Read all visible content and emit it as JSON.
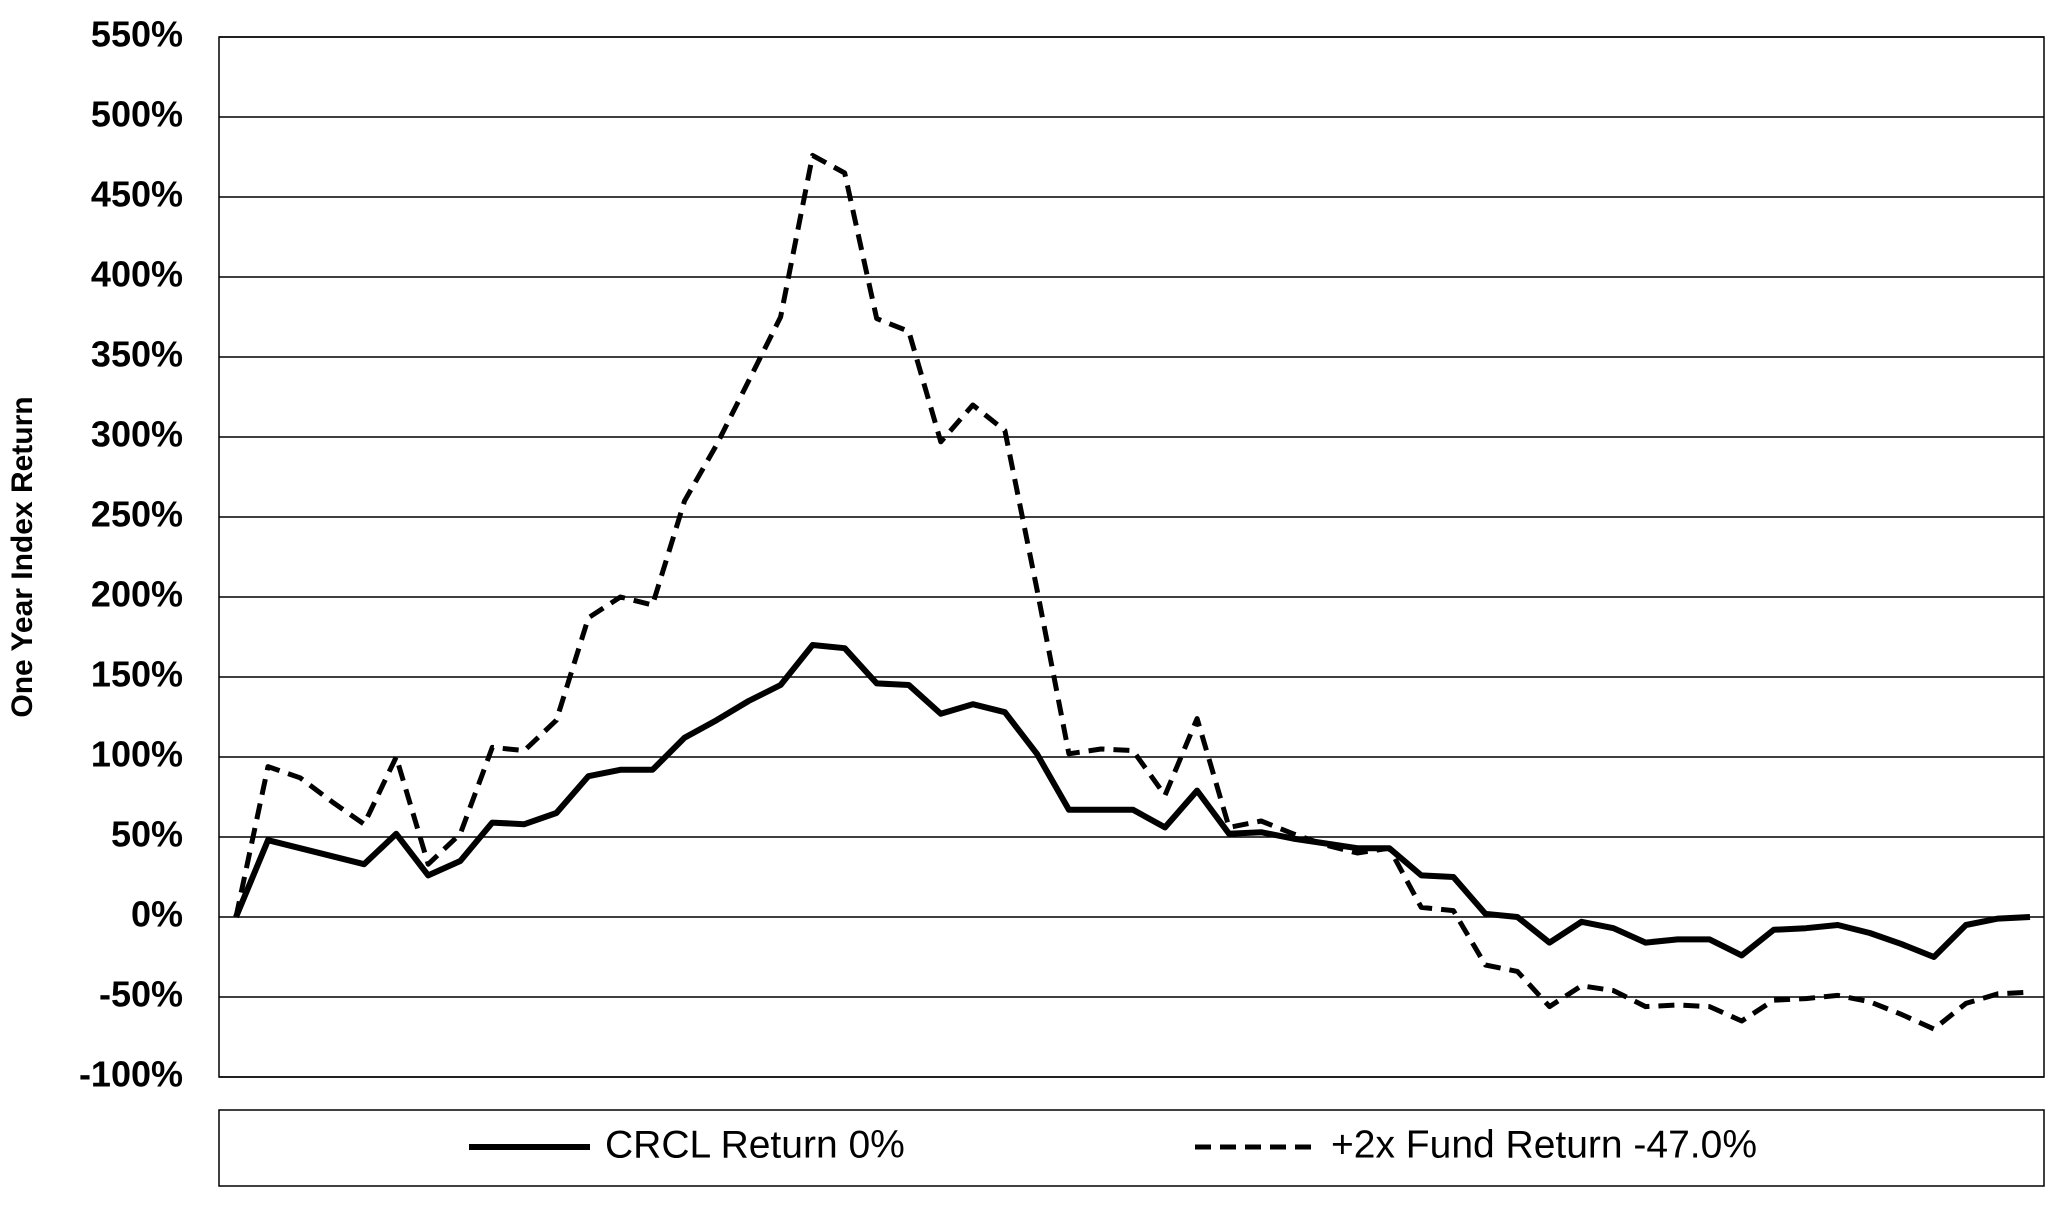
{
  "chart_data": {
    "type": "line",
    "ylabel": "One Year Index Return",
    "ylim": [
      -100,
      550
    ],
    "yticks": [
      {
        "value": -100,
        "label": "-100%"
      },
      {
        "value": -50,
        "label": "-50%"
      },
      {
        "value": 0,
        "label": "0%"
      },
      {
        "value": 50,
        "label": "50%"
      },
      {
        "value": 100,
        "label": "100%"
      },
      {
        "value": 150,
        "label": "150%"
      },
      {
        "value": 200,
        "label": "200%"
      },
      {
        "value": 250,
        "label": "250%"
      },
      {
        "value": 300,
        "label": "300%"
      },
      {
        "value": 350,
        "label": "350%"
      },
      {
        "value": 400,
        "label": "400%"
      },
      {
        "value": 450,
        "label": "450%"
      },
      {
        "value": 500,
        "label": "500%"
      },
      {
        "value": 550,
        "label": "550%"
      }
    ],
    "grid": true,
    "legend": "bottom",
    "series": [
      {
        "name": "CRCL Return 0%",
        "color": "#000000",
        "dashed": false,
        "values": [
          0,
          48,
          43,
          38,
          33,
          52,
          26,
          35,
          59,
          58,
          65,
          88,
          92,
          92,
          112,
          123,
          135,
          145,
          170,
          168,
          146,
          145,
          127,
          133,
          128,
          102,
          67,
          67,
          67,
          56,
          79,
          52,
          53,
          49,
          46,
          43,
          43,
          26,
          25,
          2,
          0,
          -16,
          -3,
          -7,
          -16,
          -14,
          -14,
          -24,
          -8,
          -7,
          -5,
          -10,
          -17,
          -25,
          -5,
          -1,
          0
        ]
      },
      {
        "name": "+2x Fund Return -47.0%",
        "color": "#000000",
        "dashed": true,
        "values": [
          0,
          94,
          87,
          72,
          58,
          100,
          33,
          52,
          106,
          104,
          123,
          187,
          200,
          195,
          260,
          295,
          335,
          375,
          476,
          465,
          374,
          366,
          297,
          320,
          304,
          205,
          102,
          105,
          104,
          76,
          124,
          56,
          60,
          52,
          45,
          40,
          43,
          6,
          4,
          -30,
          -34,
          -56,
          -43,
          -46,
          -56,
          -55,
          -56,
          -65,
          -52,
          -51,
          -49,
          -53,
          -61,
          -70,
          -54,
          -48,
          -47
        ]
      }
    ]
  }
}
